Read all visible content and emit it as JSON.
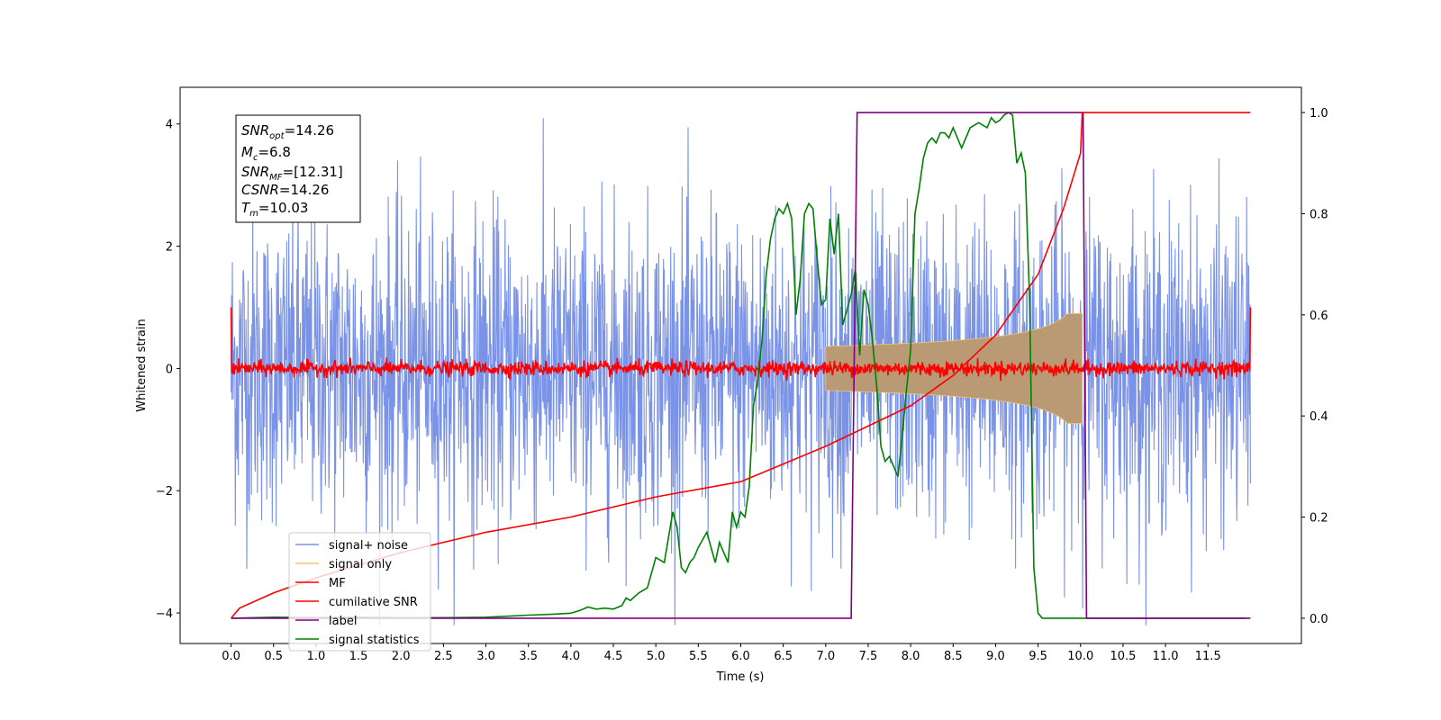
{
  "chart_data": {
    "type": "line",
    "xlabel": "Time (s)",
    "ylabel_left": "Whitened strain",
    "ylabel_right": "",
    "xlim": [
      -0.6,
      12.6
    ],
    "ylim_left": [
      -4.5,
      4.6
    ],
    "ylim_right": [
      -0.05,
      1.05
    ],
    "x_ticks": [
      "0.0",
      "0.5",
      "1.0",
      "1.5",
      "2.0",
      "2.5",
      "3.0",
      "3.5",
      "4.0",
      "4.5",
      "5.0",
      "5.5",
      "6.0",
      "6.5",
      "7.0",
      "7.5",
      "8.0",
      "8.5",
      "9.0",
      "9.5",
      "10.0",
      "10.5",
      "11.0",
      "11.5"
    ],
    "y_ticks_left": [
      "4",
      "2",
      "0",
      "−2",
      "−4"
    ],
    "y_ticks_right": [
      "1.0",
      "0.8",
      "0.6",
      "0.4",
      "0.2",
      "0.0"
    ],
    "grid": false,
    "legend_position": "lower-left",
    "info_box": {
      "snr_opt": {
        "base": "SNR",
        "sub": "opt",
        "value": "=14.26"
      },
      "mc": {
        "base": "M",
        "sub": "c",
        "value": "=6.8"
      },
      "snr_mf": {
        "base": "SNR",
        "sub": "MF",
        "value": "=[12.31]"
      },
      "csnr": {
        "base": "CSNR",
        "value": "=14.26"
      },
      "tm": {
        "base": "T",
        "sub": "m",
        "value": "=10.03"
      }
    },
    "series": [
      {
        "name": "signal+ noise",
        "color": "#7a93e6",
        "axis": "left",
        "kind": "noise",
        "x_range": [
          0,
          12.0
        ],
        "sigma": 1.0,
        "peak": 4.2
      },
      {
        "name": "signal only",
        "color": "#f5c36b",
        "axis": "left",
        "kind": "chirp_envelope",
        "x_range": [
          7.0,
          10.02
        ],
        "amplitude_at_merger": 0.9
      },
      {
        "name": "MF",
        "color": "#ff0000",
        "axis": "left",
        "kind": "noise",
        "x_range": [
          0,
          12.0
        ],
        "sigma": 0.06,
        "edge_values": [
          1.0,
          1.0
        ]
      },
      {
        "name": "cumilative SNR",
        "color": "#ff0000",
        "axis": "right",
        "x": [
          0.0,
          0.1,
          0.5,
          1.0,
          2.0,
          3.0,
          4.0,
          5.0,
          6.0,
          7.0,
          7.5,
          8.0,
          8.5,
          9.0,
          9.5,
          9.8,
          10.0,
          10.02,
          12.0
        ],
        "y": [
          0.0,
          0.02,
          0.05,
          0.08,
          0.13,
          0.17,
          0.2,
          0.24,
          0.27,
          0.34,
          0.38,
          0.42,
          0.48,
          0.56,
          0.68,
          0.81,
          0.92,
          1.0,
          1.0
        ]
      },
      {
        "name": "label",
        "color": "#800080",
        "axis": "right",
        "x": [
          0.0,
          7.3,
          7.37,
          10.03,
          10.07,
          12.0
        ],
        "y": [
          0.0,
          0.0,
          1.0,
          1.0,
          0.0,
          0.0
        ]
      },
      {
        "name": "signal statistics",
        "color": "#008000",
        "axis": "right",
        "x": [
          0.0,
          0.5,
          1.0,
          1.5,
          2.0,
          2.5,
          3.0,
          3.5,
          3.8,
          4.0,
          4.1,
          4.2,
          4.3,
          4.4,
          4.5,
          4.6,
          4.65,
          4.7,
          4.8,
          4.9,
          5.0,
          5.1,
          5.2,
          5.25,
          5.3,
          5.35,
          5.4,
          5.45,
          5.5,
          5.6,
          5.7,
          5.75,
          5.8,
          5.85,
          5.9,
          5.95,
          6.0,
          6.05,
          6.1,
          6.15,
          6.2,
          6.25,
          6.3,
          6.35,
          6.4,
          6.45,
          6.5,
          6.55,
          6.6,
          6.65,
          6.7,
          6.75,
          6.8,
          6.85,
          6.9,
          6.95,
          7.0,
          7.05,
          7.1,
          7.15,
          7.2,
          7.25,
          7.3,
          7.35,
          7.4,
          7.45,
          7.5,
          7.55,
          7.6,
          7.65,
          7.7,
          7.75,
          7.8,
          7.85,
          7.9,
          7.95,
          8.0,
          8.05,
          8.1,
          8.15,
          8.2,
          8.25,
          8.3,
          8.35,
          8.4,
          8.45,
          8.5,
          8.55,
          8.6,
          8.7,
          8.8,
          8.9,
          8.95,
          9.0,
          9.05,
          9.1,
          9.15,
          9.2,
          9.25,
          9.3,
          9.35,
          9.4,
          9.45,
          9.5,
          9.55,
          9.6,
          9.65,
          9.7,
          9.75,
          9.8,
          9.85,
          9.9,
          9.95,
          10.0,
          10.05,
          10.1,
          10.5,
          11.0,
          11.5,
          11.95
        ],
        "y": [
          0.0,
          0.002,
          0.001,
          0.002,
          0.001,
          0.001,
          0.002,
          0.006,
          0.008,
          0.01,
          0.015,
          0.022,
          0.018,
          0.02,
          0.018,
          0.025,
          0.04,
          0.035,
          0.05,
          0.06,
          0.12,
          0.11,
          0.21,
          0.18,
          0.1,
          0.09,
          0.11,
          0.12,
          0.14,
          0.17,
          0.11,
          0.15,
          0.13,
          0.11,
          0.21,
          0.18,
          0.21,
          0.2,
          0.26,
          0.42,
          0.47,
          0.55,
          0.68,
          0.75,
          0.79,
          0.81,
          0.8,
          0.82,
          0.79,
          0.6,
          0.67,
          0.8,
          0.82,
          0.81,
          0.71,
          0.62,
          0.63,
          0.79,
          0.72,
          0.8,
          0.58,
          0.61,
          0.64,
          0.69,
          0.52,
          0.65,
          0.62,
          0.55,
          0.46,
          0.34,
          0.31,
          0.32,
          0.3,
          0.28,
          0.36,
          0.45,
          0.53,
          0.8,
          0.85,
          0.91,
          0.94,
          0.95,
          0.94,
          0.96,
          0.96,
          0.95,
          0.97,
          0.95,
          0.93,
          0.97,
          0.98,
          0.97,
          0.99,
          0.98,
          0.985,
          0.995,
          1.0,
          0.995,
          0.9,
          0.92,
          0.88,
          0.63,
          0.1,
          0.01,
          0.0,
          0.0,
          0.0,
          0.0,
          0.0,
          0.0,
          0.0,
          0.0,
          0.0,
          0.0,
          0.0,
          0.0,
          0.0,
          0.0,
          0.0,
          0.0
        ]
      }
    ]
  }
}
